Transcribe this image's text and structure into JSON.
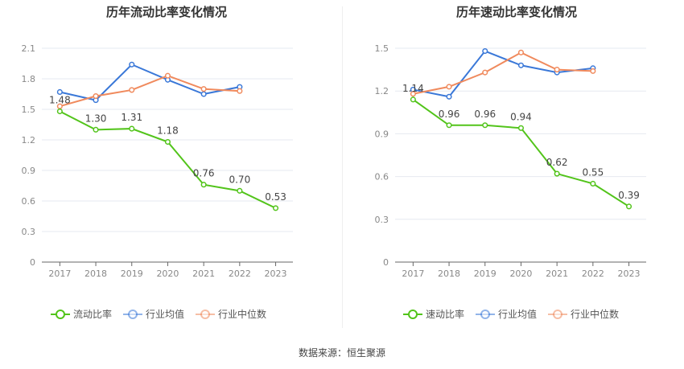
{
  "chart_data": [
    {
      "type": "line",
      "title": "历年流动比率变化情况",
      "categories": [
        "2017",
        "2018",
        "2019",
        "2020",
        "2021",
        "2022",
        "2023"
      ],
      "ylim": [
        0,
        2.1
      ],
      "yticks": [
        "0",
        "0.3",
        "0.6",
        "0.9",
        "1.2",
        "1.5",
        "1.8",
        "2.1"
      ],
      "grid": true,
      "legend": "bottom",
      "series": [
        {
          "name": "流动比率",
          "color": "#52c41a",
          "values": [
            1.48,
            1.3,
            1.31,
            1.18,
            0.76,
            0.7,
            0.53
          ],
          "labels": [
            "1.48",
            "1.30",
            "1.31",
            "1.18",
            "0.76",
            "0.70",
            "0.53"
          ]
        },
        {
          "name": "行业均值",
          "color": "#3a78d8",
          "values": [
            1.67,
            1.59,
            1.94,
            1.79,
            1.65,
            1.72,
            null
          ]
        },
        {
          "name": "行业中位数",
          "color": "#f08a5d",
          "values": [
            1.53,
            1.63,
            1.69,
            1.83,
            1.7,
            1.68,
            null
          ]
        }
      ]
    },
    {
      "type": "line",
      "title": "历年速动比率变化情况",
      "categories": [
        "2017",
        "2018",
        "2019",
        "2020",
        "2021",
        "2022",
        "2023"
      ],
      "ylim": [
        0,
        1.5
      ],
      "yticks": [
        "0",
        "0.3",
        "0.6",
        "0.9",
        "1.2",
        "1.5"
      ],
      "grid": true,
      "legend": "bottom",
      "series": [
        {
          "name": "速动比率",
          "color": "#52c41a",
          "values": [
            1.14,
            0.96,
            0.96,
            0.94,
            0.62,
            0.55,
            0.39
          ],
          "labels": [
            "1.14",
            "0.96",
            "0.96",
            "0.94",
            "0.62",
            "0.55",
            "0.39"
          ]
        },
        {
          "name": "行业均值",
          "color": "#3a78d8",
          "values": [
            1.21,
            1.16,
            1.48,
            1.38,
            1.33,
            1.36,
            null
          ]
        },
        {
          "name": "行业中位数",
          "color": "#f08a5d",
          "values": [
            1.18,
            1.23,
            1.33,
            1.47,
            1.35,
            1.34,
            null
          ]
        }
      ]
    }
  ],
  "footer": {
    "source": "数据来源：恒生聚源"
  }
}
